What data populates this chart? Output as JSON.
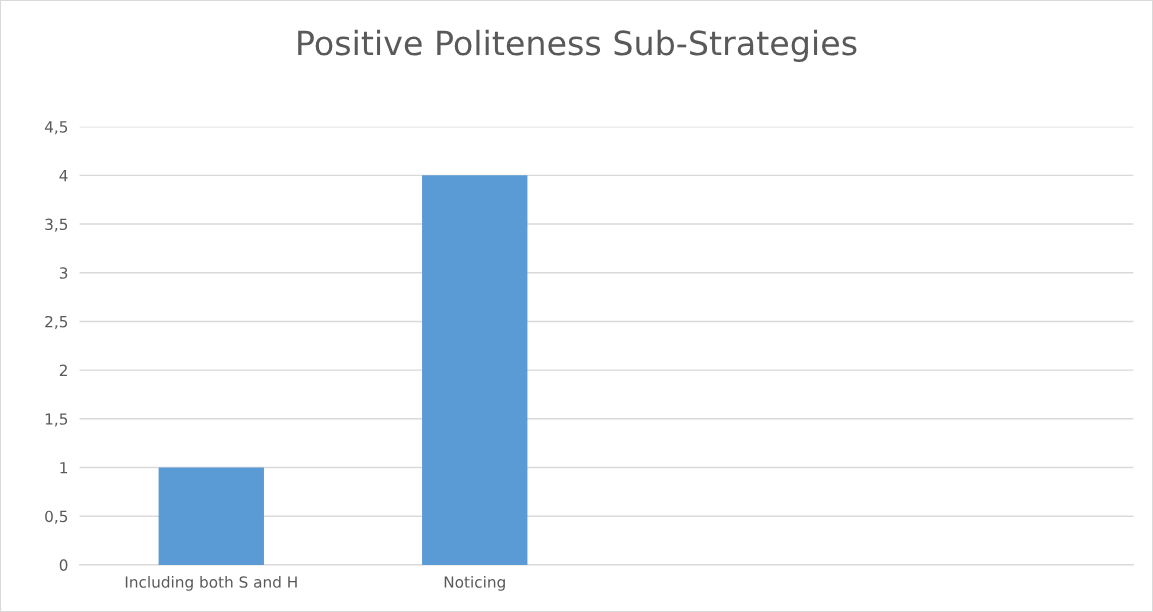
{
  "chart_data": {
    "type": "bar",
    "title": "Positive Politeness Sub-Strategies",
    "categories": [
      "Including both S and H",
      "Noticing",
      null,
      null
    ],
    "values": [
      1,
      4,
      null,
      null
    ],
    "color": "#5b9bd5",
    "ylim": [
      0,
      4.5
    ],
    "yticks": [
      0,
      {
        "value": 0.5,
        "label": "0,5"
      },
      1,
      {
        "value": 1.5,
        "label": "1,5"
      },
      2,
      {
        "value": 2.5,
        "label": "2,5"
      },
      3,
      {
        "value": 3.5,
        "label": "3,5"
      },
      4,
      {
        "value": 4.5,
        "label": "4,5"
      }
    ],
    "grid": "y"
  }
}
